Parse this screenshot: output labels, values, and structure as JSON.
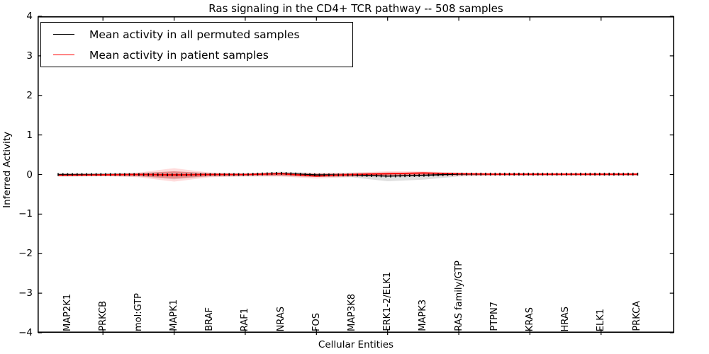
{
  "chart_data": {
    "type": "line",
    "title": "Ras signaling in the CD4+ TCR pathway -- 508 samples",
    "xlabel": "Cellular Entities",
    "ylabel": "Inferred Activity",
    "ylim": [
      -4,
      4
    ],
    "yticks": [
      4,
      3,
      2,
      1,
      0,
      -1,
      -2,
      -3,
      -4
    ],
    "ytick_labels": [
      "4",
      "3",
      "2",
      "1",
      "0",
      "−1",
      "−2",
      "−3",
      "−4"
    ],
    "grid": false,
    "legend_position": "upper left",
    "marker_note": "short black dash markers along permuted mean line",
    "categories": [
      "MAP2K1",
      "PRKCB",
      "mol:GTP",
      "MAPK1",
      "BRAF",
      "RAF1",
      "NRAS",
      "FOS",
      "MAP3K8",
      "ERK1-2/ELK1",
      "MAPK3",
      "RAS family/GTP",
      "PTPN7",
      "KRAS",
      "HRAS",
      "ELK1",
      "PRKCA"
    ],
    "series": [
      {
        "name": "Mean activity in all permuted samples",
        "color": "#000000",
        "values": [
          0.0,
          0.0,
          0.0,
          -0.01,
          0.0,
          0.0,
          0.03,
          -0.01,
          -0.01,
          -0.04,
          -0.02,
          0.01,
          0.01,
          0.01,
          0.01,
          0.01,
          0.01
        ]
      },
      {
        "name": "Mean activity in patient samples",
        "color": "#ff0000",
        "values": [
          -0.02,
          -0.01,
          0.0,
          -0.01,
          0.0,
          0.0,
          0.02,
          -0.04,
          0.0,
          0.02,
          0.04,
          0.02,
          0.01,
          0.01,
          0.01,
          0.01,
          0.01
        ]
      }
    ],
    "bands": [
      {
        "name": "permuted-samples-spread",
        "color": "#999999",
        "opacity": 0.3,
        "upper": [
          0.03,
          0.03,
          0.04,
          0.08,
          0.04,
          0.03,
          0.07,
          0.04,
          0.04,
          0.05,
          0.04,
          0.04,
          0.03,
          0.02,
          0.02,
          0.02,
          0.02
        ],
        "lower": [
          -0.04,
          -0.04,
          -0.05,
          -0.12,
          -0.05,
          -0.04,
          -0.04,
          -0.06,
          -0.07,
          -0.17,
          -0.13,
          -0.05,
          -0.02,
          -0.02,
          -0.02,
          -0.02,
          -0.02
        ]
      },
      {
        "name": "patient-samples-spread-outer",
        "color": "#ff0000",
        "opacity": 0.14,
        "upper": [
          0.02,
          0.02,
          0.05,
          0.16,
          0.05,
          0.03,
          0.05,
          0.03,
          0.05,
          0.08,
          0.08,
          0.05,
          0.03,
          0.02,
          0.02,
          0.02,
          0.02
        ],
        "lower": [
          -0.05,
          -0.04,
          -0.07,
          -0.18,
          -0.07,
          -0.05,
          -0.05,
          -0.1,
          -0.06,
          -0.04,
          -0.03,
          -0.03,
          -0.03,
          -0.03,
          -0.03,
          -0.03,
          -0.03
        ]
      },
      {
        "name": "patient-samples-spread-inner",
        "color": "#ee0000",
        "opacity": 0.28,
        "upper": [
          0.01,
          0.01,
          0.03,
          0.08,
          0.03,
          0.02,
          0.03,
          0.02,
          0.03,
          0.05,
          0.05,
          0.03,
          0.01,
          0.01,
          0.01,
          0.01,
          0.01
        ],
        "lower": [
          -0.03,
          -0.02,
          -0.04,
          -0.1,
          -0.04,
          -0.03,
          -0.03,
          -0.06,
          -0.04,
          -0.02,
          -0.02,
          -0.02,
          -0.02,
          -0.02,
          -0.02,
          -0.02,
          -0.02
        ]
      }
    ]
  },
  "legend": {
    "items": [
      {
        "label": "Mean activity in all permuted samples",
        "color": "#000000"
      },
      {
        "label": "Mean activity in patient samples",
        "color": "#ff0000"
      }
    ]
  }
}
